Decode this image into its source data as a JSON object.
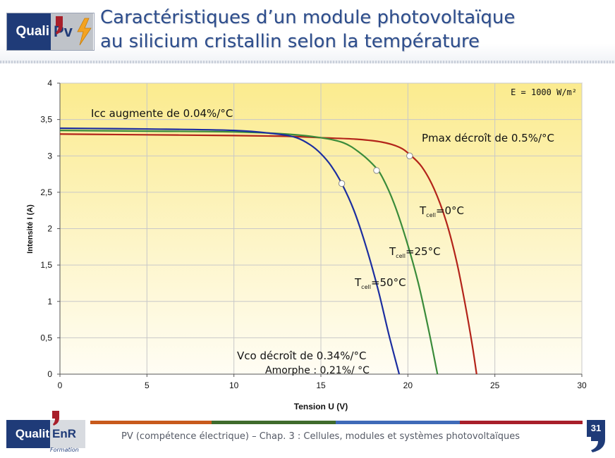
{
  "header": {
    "title_line1": "Caractéristiques d’un module photovoltaïque",
    "title_line2": "au silicium cristallin selon la température",
    "logo_quali": "Quali",
    "logo_pv": "Pv"
  },
  "chart_data": {
    "type": "line",
    "title": "",
    "xlabel": "Tension U (V)",
    "ylabel": "Intensité I (A)",
    "xlim": [
      0,
      30
    ],
    "ylim": [
      0,
      4
    ],
    "x_ticks": [
      0,
      5,
      10,
      15,
      20,
      25,
      30
    ],
    "x_tick_labels": [
      "0",
      "5",
      "10",
      "15",
      "20",
      "25",
      "30"
    ],
    "y_ticks": [
      0,
      0.5,
      1,
      1.5,
      2,
      2.5,
      3,
      3.5,
      4
    ],
    "y_tick_labels": [
      "0",
      "0,5",
      "1",
      "1,5",
      "2",
      "2,5",
      "3",
      "3,5",
      "4"
    ],
    "grid": "vertical and horizontal",
    "series": [
      {
        "name": "Tcell=0°C",
        "color": "#b3241a",
        "points": [
          [
            0,
            3.3
          ],
          [
            5,
            3.29
          ],
          [
            10,
            3.28
          ],
          [
            13,
            3.27
          ],
          [
            15,
            3.25
          ],
          [
            17,
            3.23
          ],
          [
            18.5,
            3.19
          ],
          [
            19.5,
            3.12
          ],
          [
            20.1,
            3.02
          ],
          [
            20.8,
            2.85
          ],
          [
            21.5,
            2.55
          ],
          [
            22.2,
            2.1
          ],
          [
            22.8,
            1.55
          ],
          [
            23.3,
            0.95
          ],
          [
            23.7,
            0.4
          ],
          [
            23.95,
            0
          ]
        ],
        "mpp": [
          20.1,
          3.0
        ]
      },
      {
        "name": "Tcell=25°C",
        "color": "#3a8b3a",
        "points": [
          [
            0,
            3.35
          ],
          [
            5,
            3.34
          ],
          [
            10,
            3.33
          ],
          [
            13,
            3.3
          ],
          [
            15,
            3.25
          ],
          [
            16.3,
            3.18
          ],
          [
            17.2,
            3.05
          ],
          [
            18.0,
            2.88
          ],
          [
            18.5,
            2.72
          ],
          [
            19.2,
            2.35
          ],
          [
            19.9,
            1.85
          ],
          [
            20.6,
            1.25
          ],
          [
            21.2,
            0.6
          ],
          [
            21.7,
            0
          ]
        ],
        "mpp": [
          18.2,
          2.8
        ]
      },
      {
        "name": "Tcell=50°C",
        "color": "#1c2ea0",
        "points": [
          [
            0,
            3.38
          ],
          [
            5,
            3.37
          ],
          [
            10,
            3.35
          ],
          [
            12.5,
            3.3
          ],
          [
            13.6,
            3.25
          ],
          [
            14.4,
            3.15
          ],
          [
            15.0,
            3.03
          ],
          [
            15.6,
            2.86
          ],
          [
            16.2,
            2.62
          ],
          [
            16.9,
            2.25
          ],
          [
            17.6,
            1.75
          ],
          [
            18.3,
            1.15
          ],
          [
            18.9,
            0.55
          ],
          [
            19.5,
            0
          ]
        ],
        "mpp": [
          16.2,
          2.62
        ]
      }
    ],
    "annotations": {
      "irradiance": "E = 1000 W/m²",
      "icc": "Icc augmente de 0.04%/°C",
      "pmax": "Pmax décroît de 0.5%/°C",
      "vco": "Vco décroît de 0.34%/°C",
      "amorphe": "Amorphe : 0,21%/ °C",
      "t0_main": "T",
      "t0_sub": "cell",
      "t0_val": "=0°C",
      "t25_main": "T",
      "t25_sub": "cell",
      "t25_val": "=25°C",
      "t50_main": "T",
      "t50_sub": "cell",
      "t50_val": "=50°C"
    }
  },
  "footer": {
    "text": "PV (compétence électrique) – Chap. 3 : Cellules, modules et systèmes photovoltaïques",
    "logo_quali": "Qualit",
    "logo_enr": "EnR",
    "logo_sub": "Formation",
    "page_number": "31",
    "bar_colors": [
      "#c85a1c",
      "#3f6b2c",
      "#3f6ab8",
      "#a81f2a"
    ]
  }
}
